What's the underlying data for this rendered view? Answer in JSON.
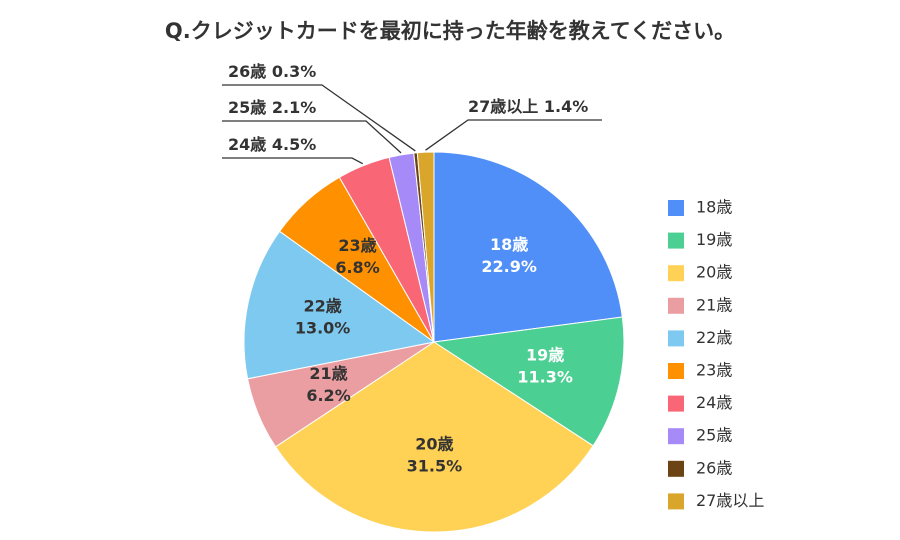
{
  "chart_data": {
    "type": "pie",
    "title": "Q.クレジットカードを最初に持った年齢を教えてください。",
    "categories": [
      "18歳",
      "19歳",
      "20歳",
      "21歳",
      "22歳",
      "23歳",
      "24歳",
      "25歳",
      "26歳",
      "27歳以上"
    ],
    "values": [
      22.9,
      11.3,
      31.5,
      6.2,
      13.0,
      6.8,
      4.5,
      2.1,
      0.3,
      1.4
    ],
    "value_labels": [
      "22.9%",
      "11.3%",
      "31.5%",
      "6.2%",
      "13.0%",
      "6.8%",
      "4.5%",
      "2.1%",
      "0.3%",
      "1.4%"
    ],
    "colors": [
      "#4f8ff7",
      "#4ccf92",
      "#ffd154",
      "#eb9ea1",
      "#7ec9f0",
      "#ff9000",
      "#f96776",
      "#a68af7",
      "#6b4314",
      "#d9a62b"
    ],
    "label_colors": [
      "#ffffff",
      "#ffffff",
      "#333333",
      "#333333",
      "#333333",
      "#333333",
      "#333333",
      "#333333",
      "#333333",
      "#333333"
    ],
    "legend": "right"
  }
}
